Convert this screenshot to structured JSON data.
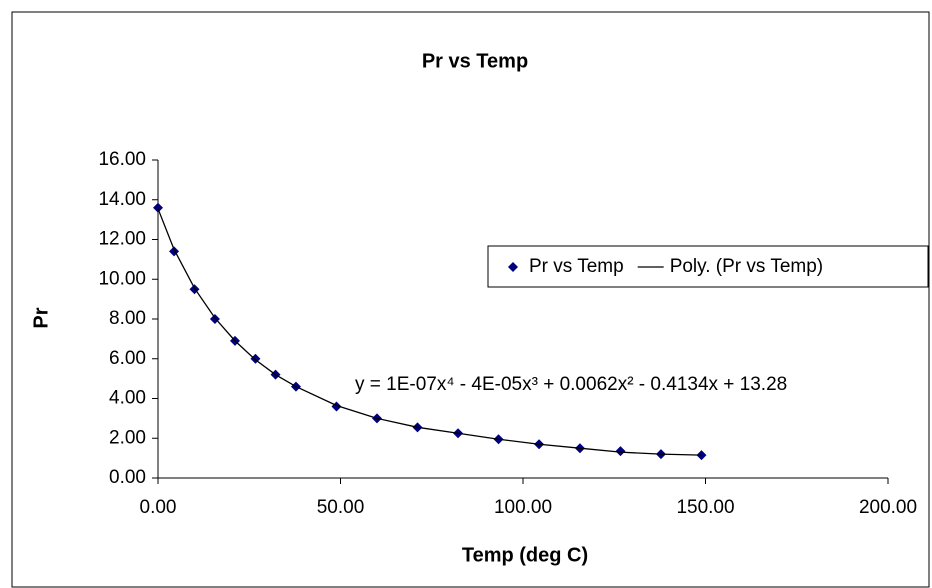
{
  "chart_data": {
    "type": "scatter",
    "title": "Pr  vs Temp",
    "x_label": "Temp (deg C)",
    "y_label": "Pr",
    "x": [
      0,
      4.4,
      10,
      15.6,
      21.1,
      26.7,
      32.2,
      37.8,
      48.9,
      60,
      71.1,
      82.2,
      93.3,
      104.4,
      115.6,
      126.7,
      137.8,
      148.9
    ],
    "series": [
      {
        "name": "Pr vs Temp",
        "color": "#000080",
        "mode": "markers",
        "values": [
          13.6,
          11.4,
          9.5,
          8.0,
          6.9,
          6.0,
          5.2,
          4.6,
          3.6,
          3.0,
          2.55,
          2.25,
          1.95,
          1.7,
          1.5,
          1.35,
          1.2,
          1.15
        ]
      },
      {
        "name": "Poly. (Pr vs Temp)",
        "color": "#000000",
        "mode": "line",
        "values": [
          13.55,
          11.5,
          9.55,
          8.05,
          6.9,
          5.95,
          5.2,
          4.6,
          3.65,
          3.0,
          2.55,
          2.25,
          1.95,
          1.7,
          1.5,
          1.3,
          1.2,
          1.15
        ]
      }
    ],
    "equation": "y = 1E-07x⁴ - 4E-05x³ + 0.0062x² - 0.4134x + 13.28",
    "xlim": [
      0,
      200
    ],
    "xticks": [
      {
        "value": 0,
        "label": "0.00"
      },
      {
        "value": 50,
        "label": "50.00"
      },
      {
        "value": 100,
        "label": "100.00"
      },
      {
        "value": 150,
        "label": "150.00"
      },
      {
        "value": 200,
        "label": "200.00"
      }
    ],
    "ylim": [
      0,
      16
    ],
    "yticks": [
      {
        "value": 0,
        "label": "0.00"
      },
      {
        "value": 2,
        "label": "2.00"
      },
      {
        "value": 4,
        "label": "4.00"
      },
      {
        "value": 6,
        "label": "6.00"
      },
      {
        "value": 8,
        "label": "8.00"
      },
      {
        "value": 10,
        "label": "10.00"
      },
      {
        "value": 12,
        "label": "12.00"
      },
      {
        "value": 14,
        "label": "14.00"
      },
      {
        "value": 16,
        "label": "16.00"
      }
    ],
    "grid": false,
    "legend": "right"
  }
}
